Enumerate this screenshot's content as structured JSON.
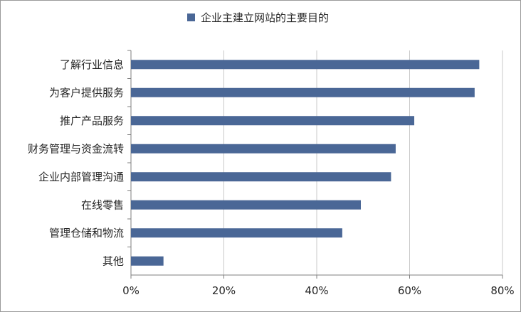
{
  "chart_data": {
    "type": "bar",
    "orientation": "horizontal",
    "legend": "top-center",
    "series": [
      {
        "name": "企业主建立网站的主要目的",
        "color": "#4a6796",
        "values": [
          75,
          74,
          61,
          57,
          56,
          49.5,
          45.5,
          7
        ]
      }
    ],
    "categories": [
      "了解行业信息",
      "为客户提供服务",
      "推广产品服务",
      "财务管理与资金流转",
      "企业内部管理沟通",
      "在线零售",
      "管理仓储和物流",
      "其他"
    ],
    "xlim": [
      0,
      80
    ],
    "xticks": [
      0,
      20,
      40,
      60,
      80
    ],
    "xtick_labels": [
      "0%",
      "20%",
      "40%",
      "60%",
      "80%"
    ],
    "grid": "vertical",
    "grid_color": "#c8c8c8",
    "axis_color": "#7f7f7f"
  }
}
